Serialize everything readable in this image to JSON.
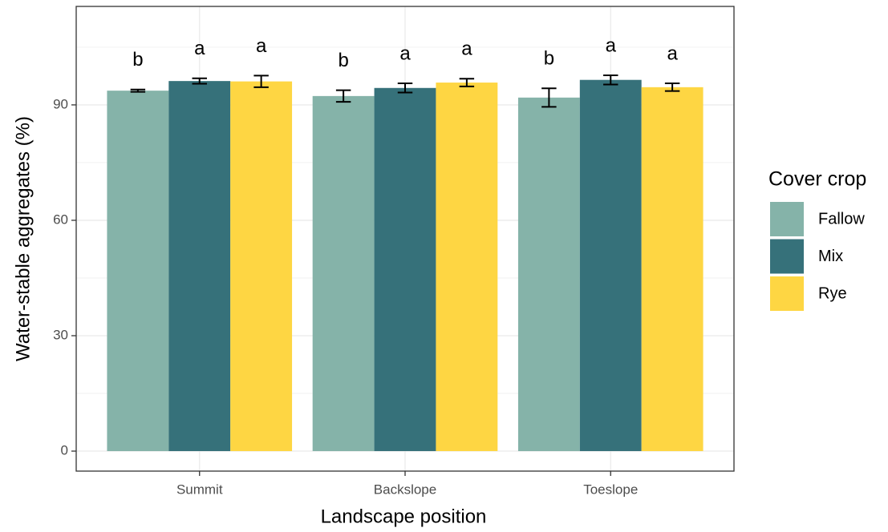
{
  "chart_data": {
    "type": "bar",
    "x_label": "Landscape position",
    "y_label": "Water-stable aggregates (%)",
    "legend_title": "Cover crop",
    "categories": [
      "Summit",
      "Backslope",
      "Toeslope"
    ],
    "series": [
      {
        "name": "Fallow",
        "color": "#85b3a9",
        "values": [
          93.7,
          92.3,
          91.9
        ],
        "errors": [
          0.3,
          1.5,
          2.4
        ],
        "letters": [
          "b",
          "b",
          "b"
        ]
      },
      {
        "name": "Mix",
        "color": "#36717a",
        "values": [
          96.2,
          94.4,
          96.5
        ],
        "errors": [
          0.7,
          1.2,
          1.2
        ],
        "letters": [
          "a",
          "a",
          "a"
        ]
      },
      {
        "name": "Rye",
        "color": "#fed643",
        "values": [
          96.1,
          95.8,
          94.6
        ],
        "errors": [
          1.5,
          1.0,
          1.0
        ],
        "letters": [
          "a",
          "a",
          "a"
        ]
      }
    ],
    "ylim": [
      -5.2,
      115.6
    ],
    "yticks": [
      0,
      30,
      60,
      90
    ],
    "grid": true,
    "legend": "right"
  }
}
